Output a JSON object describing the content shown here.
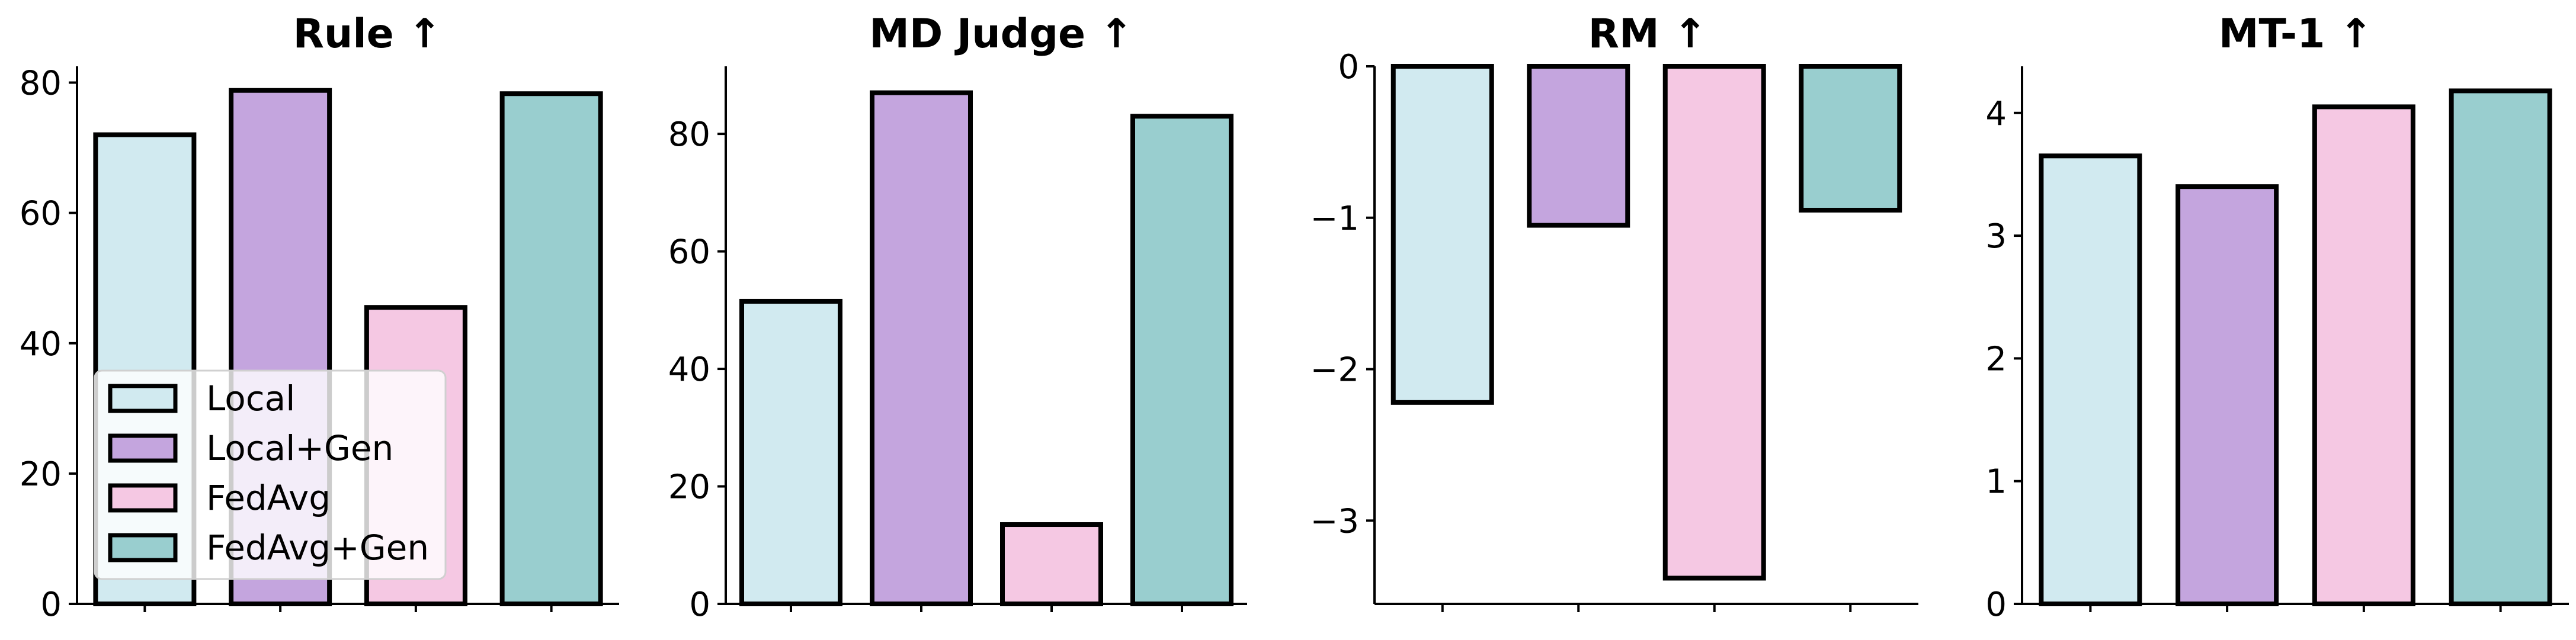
{
  "chart_data": [
    {
      "type": "bar",
      "title": "Rule ↑",
      "xlabel": "",
      "ylabel": "",
      "categories": [
        "Local",
        "Local+Gen",
        "FedAvg",
        "FedAvg+Gen"
      ],
      "values": [
        72.0,
        78.8,
        45.5,
        78.3
      ],
      "ylim": [
        0,
        82.5
      ],
      "yticks": [
        0,
        20,
        40,
        60,
        80
      ],
      "legend": "lower-left"
    },
    {
      "type": "bar",
      "title": "MD Judge ↑",
      "xlabel": "",
      "ylabel": "",
      "categories": [
        "Local",
        "Local+Gen",
        "FedAvg",
        "FedAvg+Gen"
      ],
      "values": [
        51.5,
        87.0,
        13.5,
        83.0
      ],
      "ylim": [
        0,
        91.5
      ],
      "yticks": [
        0,
        20,
        40,
        60,
        80
      ]
    },
    {
      "type": "bar",
      "title": "RM ↑",
      "xlabel": "",
      "ylabel": "",
      "categories": [
        "Local",
        "Local+Gen",
        "FedAvg",
        "FedAvg+Gen"
      ],
      "values": [
        -2.22,
        -1.05,
        -3.38,
        -0.95
      ],
      "ylim": [
        -3.55,
        0
      ],
      "yticks": [
        0,
        -1,
        -2,
        -3
      ],
      "yticklabels": [
        "0",
        "−1",
        "−2",
        "−3"
      ]
    },
    {
      "type": "bar",
      "title": "MT-1 ↑",
      "xlabel": "",
      "ylabel": "",
      "categories": [
        "Local",
        "Local+Gen",
        "FedAvg",
        "FedAvg+Gen"
      ],
      "values": [
        3.65,
        3.4,
        4.05,
        4.18
      ],
      "ylim": [
        0,
        4.38
      ],
      "yticks": [
        0,
        1,
        2,
        3,
        4
      ]
    }
  ],
  "legend": {
    "items": [
      "Local",
      "Local+Gen",
      "FedAvg",
      "FedAvg+Gen"
    ]
  },
  "colors": [
    "#d1eaf0",
    "#c4a5de",
    "#f5c8e3",
    "#99cecf"
  ]
}
